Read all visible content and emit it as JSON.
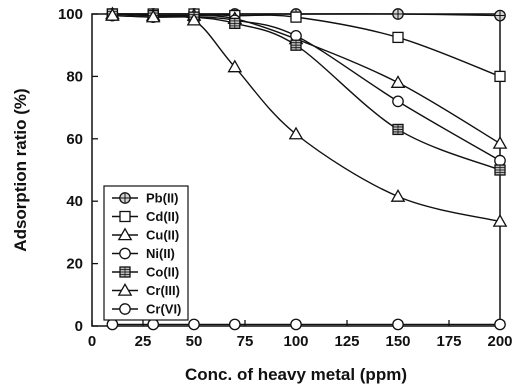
{
  "chart_data": {
    "type": "line",
    "title": "",
    "xlabel": "Conc. of heavy metal (ppm)",
    "ylabel": "Adsorption ratio (%)",
    "xlim": [
      0,
      200
    ],
    "ylim": [
      0,
      100
    ],
    "x_ticks": [
      "0",
      "25",
      "50",
      "75",
      "100",
      "125",
      "150",
      "175",
      "200"
    ],
    "y_ticks": [
      "0",
      "20",
      "40",
      "60",
      "80",
      "100"
    ],
    "grid": false,
    "legend_position": "bottom-left",
    "series": [
      {
        "name": "Pb(II)",
        "marker": "circle-crosshatch",
        "x": [
          10,
          30,
          50,
          70,
          100,
          150,
          200
        ],
        "y": [
          100,
          100,
          100,
          100,
          100,
          100,
          99.5
        ]
      },
      {
        "name": "Cd(II)",
        "marker": "square",
        "x": [
          10,
          30,
          50,
          70,
          100,
          150,
          200
        ],
        "y": [
          100,
          100,
          100,
          99.5,
          99,
          92.5,
          80
        ]
      },
      {
        "name": "Cu(II)",
        "marker": "triangle",
        "x": [
          10,
          30,
          50,
          70,
          100,
          150,
          200
        ],
        "y": [
          100,
          99.5,
          99.5,
          98.5,
          92,
          78,
          58.5
        ]
      },
      {
        "name": "Ni(II)",
        "marker": "circle",
        "x": [
          10,
          30,
          50,
          70,
          100,
          150,
          200
        ],
        "y": [
          99.5,
          99,
          99,
          98,
          93,
          72,
          53
        ]
      },
      {
        "name": "Co(II)",
        "marker": "square-crosshatch",
        "x": [
          10,
          30,
          50,
          70,
          100,
          150,
          200
        ],
        "y": [
          100,
          99.5,
          99,
          97,
          90,
          63,
          50
        ]
      },
      {
        "name": "Cr(III)",
        "marker": "triangle",
        "x": [
          10,
          30,
          50,
          70,
          100,
          150,
          200
        ],
        "y": [
          99.5,
          99,
          98,
          83,
          61.5,
          41.5,
          33.5
        ]
      },
      {
        "name": "Cr(VI)",
        "marker": "circle",
        "x": [
          10,
          30,
          50,
          70,
          100,
          150,
          200
        ],
        "y": [
          0.5,
          0.5,
          0.5,
          0.5,
          0.5,
          0.5,
          0.5
        ]
      }
    ]
  }
}
